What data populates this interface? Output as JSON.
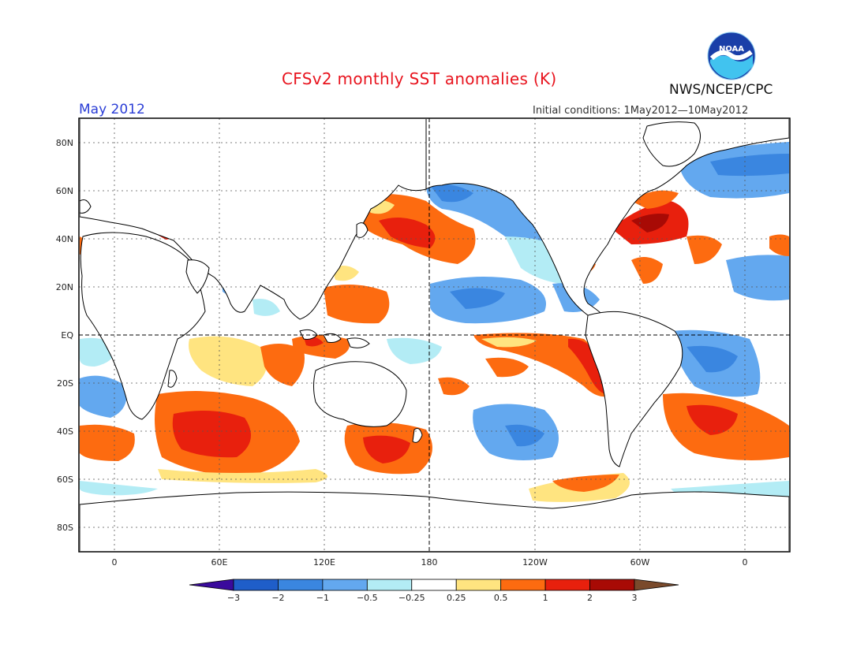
{
  "header": {
    "title": "CFSv2 monthly SST anomalies (K)",
    "month": "May 2012",
    "initial_conditions": "Initial conditions: 1May2012—10May2012",
    "agency": "NWS/NCEP/CPC",
    "logo_text": "NOAA"
  },
  "map": {
    "lat_labels": [
      "80N",
      "60N",
      "40N",
      "20N",
      "EQ",
      "20S",
      "40S",
      "60S",
      "80S"
    ],
    "lon_labels": [
      "0",
      "60E",
      "120E",
      "180",
      "120W",
      "60W",
      "0"
    ]
  },
  "colorbar": {
    "labels": [
      "−3",
      "−2",
      "−1",
      "−0.5",
      "−0.25",
      "0.25",
      "0.5",
      "1",
      "2",
      "3"
    ],
    "colors": [
      "#3a0a9c",
      "#1f5ec9",
      "#3a86e0",
      "#63a8ef",
      "#b3ecf5",
      "#ffffff",
      "#ffe480",
      "#fd6b10",
      "#e8200d",
      "#a80a05",
      "#7a4a2c"
    ]
  }
}
